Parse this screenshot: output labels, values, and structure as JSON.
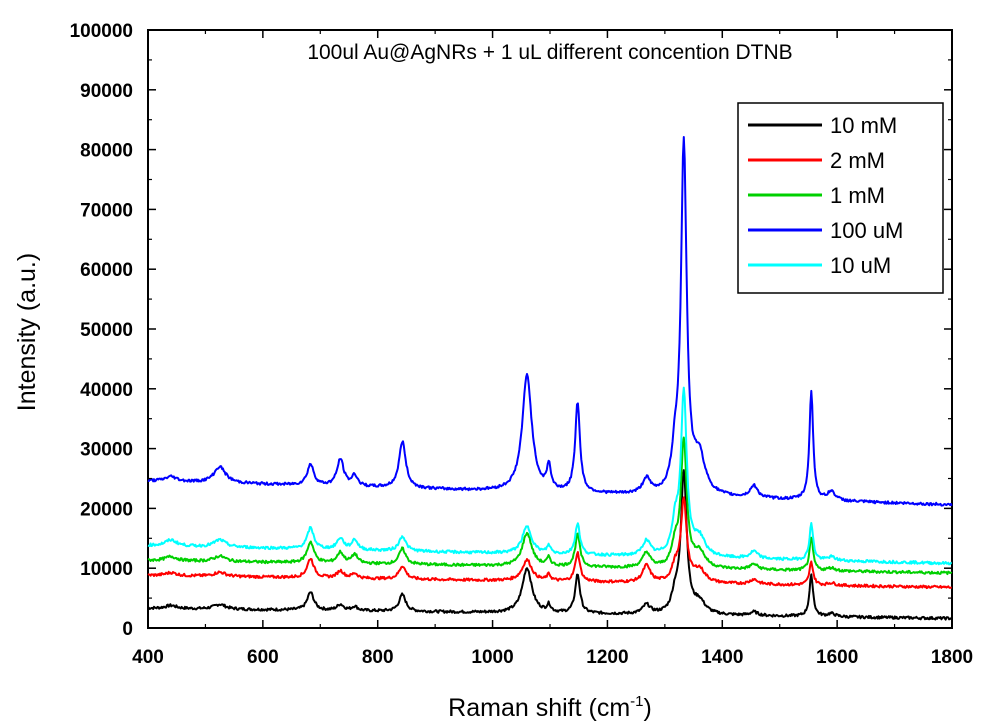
{
  "chart_data": {
    "type": "line",
    "title": "100ul Au@AgNRs + 1 uL different concention DTNB",
    "xlabel_main": "Raman shift (cm",
    "xlabel_sup": "-1",
    "xlabel_end": ")",
    "ylabel": "Intensity (a.u.)",
    "xlim": [
      400,
      1800
    ],
    "ylim": [
      0,
      100000
    ],
    "xticks": [
      400,
      600,
      800,
      1000,
      1200,
      1400,
      1600,
      1800
    ],
    "yticks": [
      0,
      10000,
      20000,
      30000,
      40000,
      50000,
      60000,
      70000,
      80000,
      90000,
      100000
    ],
    "legend_position": "top-right",
    "grid": false,
    "peaks": [
      [
        440,
        12,
        1.0
      ],
      [
        525,
        12,
        1.5
      ],
      [
        683,
        7,
        2.5
      ],
      [
        735,
        7,
        1.8
      ],
      [
        760,
        6,
        1.2
      ],
      [
        843,
        7,
        3.0
      ],
      [
        1060,
        10,
        8.5
      ],
      [
        1098,
        4,
        1.5
      ],
      [
        1148,
        5,
        6.5
      ],
      [
        1268,
        8,
        2.0
      ],
      [
        1318,
        7,
        5.0
      ],
      [
        1333,
        6,
        13.5
      ],
      [
        1360,
        12,
        3.0
      ],
      [
        1455,
        8,
        1.0
      ],
      [
        1555,
        4,
        7.5
      ],
      [
        1590,
        8,
        0.8
      ]
    ],
    "series": [
      {
        "name": "10 mM",
        "color": "#000000",
        "base_start": 3300,
        "base_end": 1600,
        "heights": [
          500,
          800,
          3000,
          1000,
          700,
          2800,
          7500,
          1200,
          6500,
          1500,
          3000,
          23500,
          2000,
          600,
          6800,
          500
        ]
      },
      {
        "name": "2 mM",
        "color": "#ff0000",
        "base_start": 8800,
        "base_end": 6800,
        "heights": [
          500,
          700,
          3200,
          1200,
          800,
          2200,
          3500,
          1000,
          4800,
          2800,
          2500,
          13500,
          2200,
          800,
          3800,
          400
        ]
      },
      {
        "name": "1 mM",
        "color": "#00d000",
        "base_start": 11300,
        "base_end": 9200,
        "heights": [
          700,
          900,
          3500,
          1800,
          1500,
          2600,
          5500,
          1300,
          5400,
          2500,
          3500,
          21000,
          2600,
          900,
          5300,
          500
        ]
      },
      {
        "name": "100 uM",
        "color": "#0000ff",
        "base_start": 24600,
        "base_end": 20600,
        "heights": [
          800,
          2700,
          3500,
          4500,
          1800,
          7800,
          19500,
          4000,
          15000,
          2500,
          5500,
          58000,
          6000,
          2000,
          18000,
          1500
        ]
      },
      {
        "name": "10 uM",
        "color": "#00ffff",
        "base_start": 13800,
        "base_end": 10800,
        "heights": [
          1000,
          1200,
          3500,
          1900,
          1700,
          2500,
          4500,
          1300,
          5200,
          2500,
          5000,
          27000,
          3000,
          1200,
          6000,
          600
        ]
      }
    ]
  }
}
